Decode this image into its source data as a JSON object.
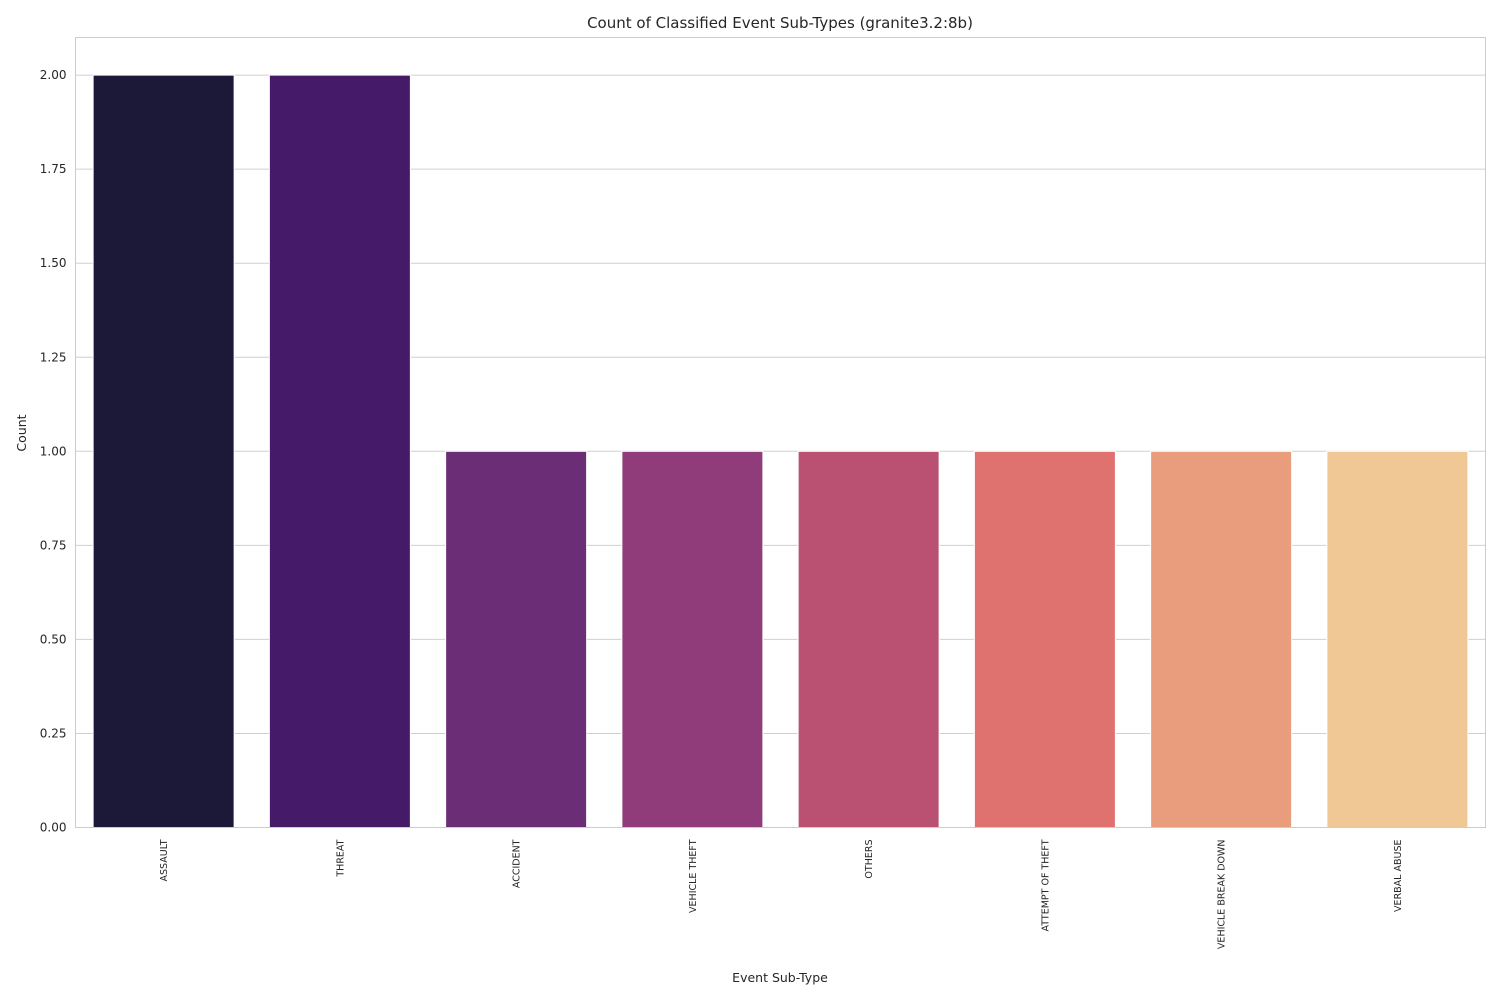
{
  "chart_data": {
    "type": "bar",
    "title": "Count of Classified Event Sub-Types (granite3.2:8b)",
    "xlabel": "Event Sub-Type",
    "ylabel": "Count",
    "categories": [
      "ASSAULT",
      "THREAT",
      "ACCIDENT",
      "VEHICLE THEFT",
      "OTHERS",
      "ATTEMPT OF THEFT",
      "VEHICLE BREAK DOWN",
      "VERBAL ABUSE"
    ],
    "values": [
      2,
      2,
      1,
      1,
      1,
      1,
      1,
      1
    ],
    "colors": [
      "#1c1838",
      "#451a68",
      "#6b2d76",
      "#913c7a",
      "#ba5072",
      "#df716f",
      "#e99d7c",
      "#efc896"
    ],
    "ylim": [
      0,
      2.1
    ],
    "yticks": [
      "0.00",
      "0.25",
      "0.50",
      "0.75",
      "1.00",
      "1.25",
      "1.50",
      "1.75",
      "2.00"
    ],
    "grid": "horizontal",
    "legend": "none"
  }
}
